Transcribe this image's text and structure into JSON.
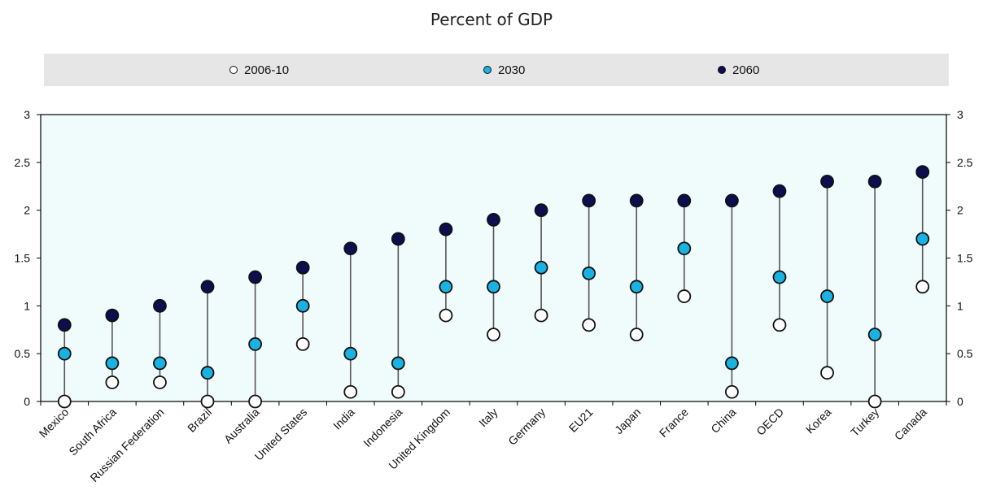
{
  "chart_data": {
    "type": "scatter",
    "title": "Percent of GDP",
    "ylim": [
      0,
      3
    ],
    "yticks": [
      "0",
      "0.5",
      "1",
      "1.5",
      "2",
      "2.5",
      "3"
    ],
    "legend_position": "top",
    "categories": [
      "Mexico",
      "South Africa",
      "Russian Federation",
      "Brazil",
      "Australia",
      "United States",
      "India",
      "Indonesia",
      "United Kingdom",
      "Italy",
      "Germany",
      "EU21",
      "Japan",
      "France",
      "China",
      "OECD",
      "Korea",
      "Turkey",
      "Canada"
    ],
    "series": [
      {
        "name": "2006-10",
        "color": "#ffffff",
        "values": [
          0,
          0.2,
          0.2,
          0,
          0,
          0.6,
          0.1,
          0.1,
          0.9,
          0.7,
          0.9,
          0.8,
          0.7,
          1.1,
          0.1,
          0.8,
          0.3,
          0,
          1.2
        ]
      },
      {
        "name": "2030",
        "color": "#1ab2e0",
        "values": [
          0.5,
          0.4,
          0.4,
          0.3,
          0.6,
          1.0,
          0.5,
          0.4,
          1.2,
          1.2,
          1.4,
          1.34,
          1.2,
          1.6,
          0.4,
          1.3,
          1.1,
          0.7,
          1.7
        ]
      },
      {
        "name": "2060",
        "color": "#0b0e4f",
        "values": [
          0.8,
          0.9,
          1.0,
          1.2,
          1.3,
          1.4,
          1.6,
          1.7,
          1.8,
          1.9,
          2.0,
          2.1,
          2.1,
          2.1,
          2.1,
          2.2,
          2.3,
          2.3,
          2.4
        ]
      }
    ]
  }
}
